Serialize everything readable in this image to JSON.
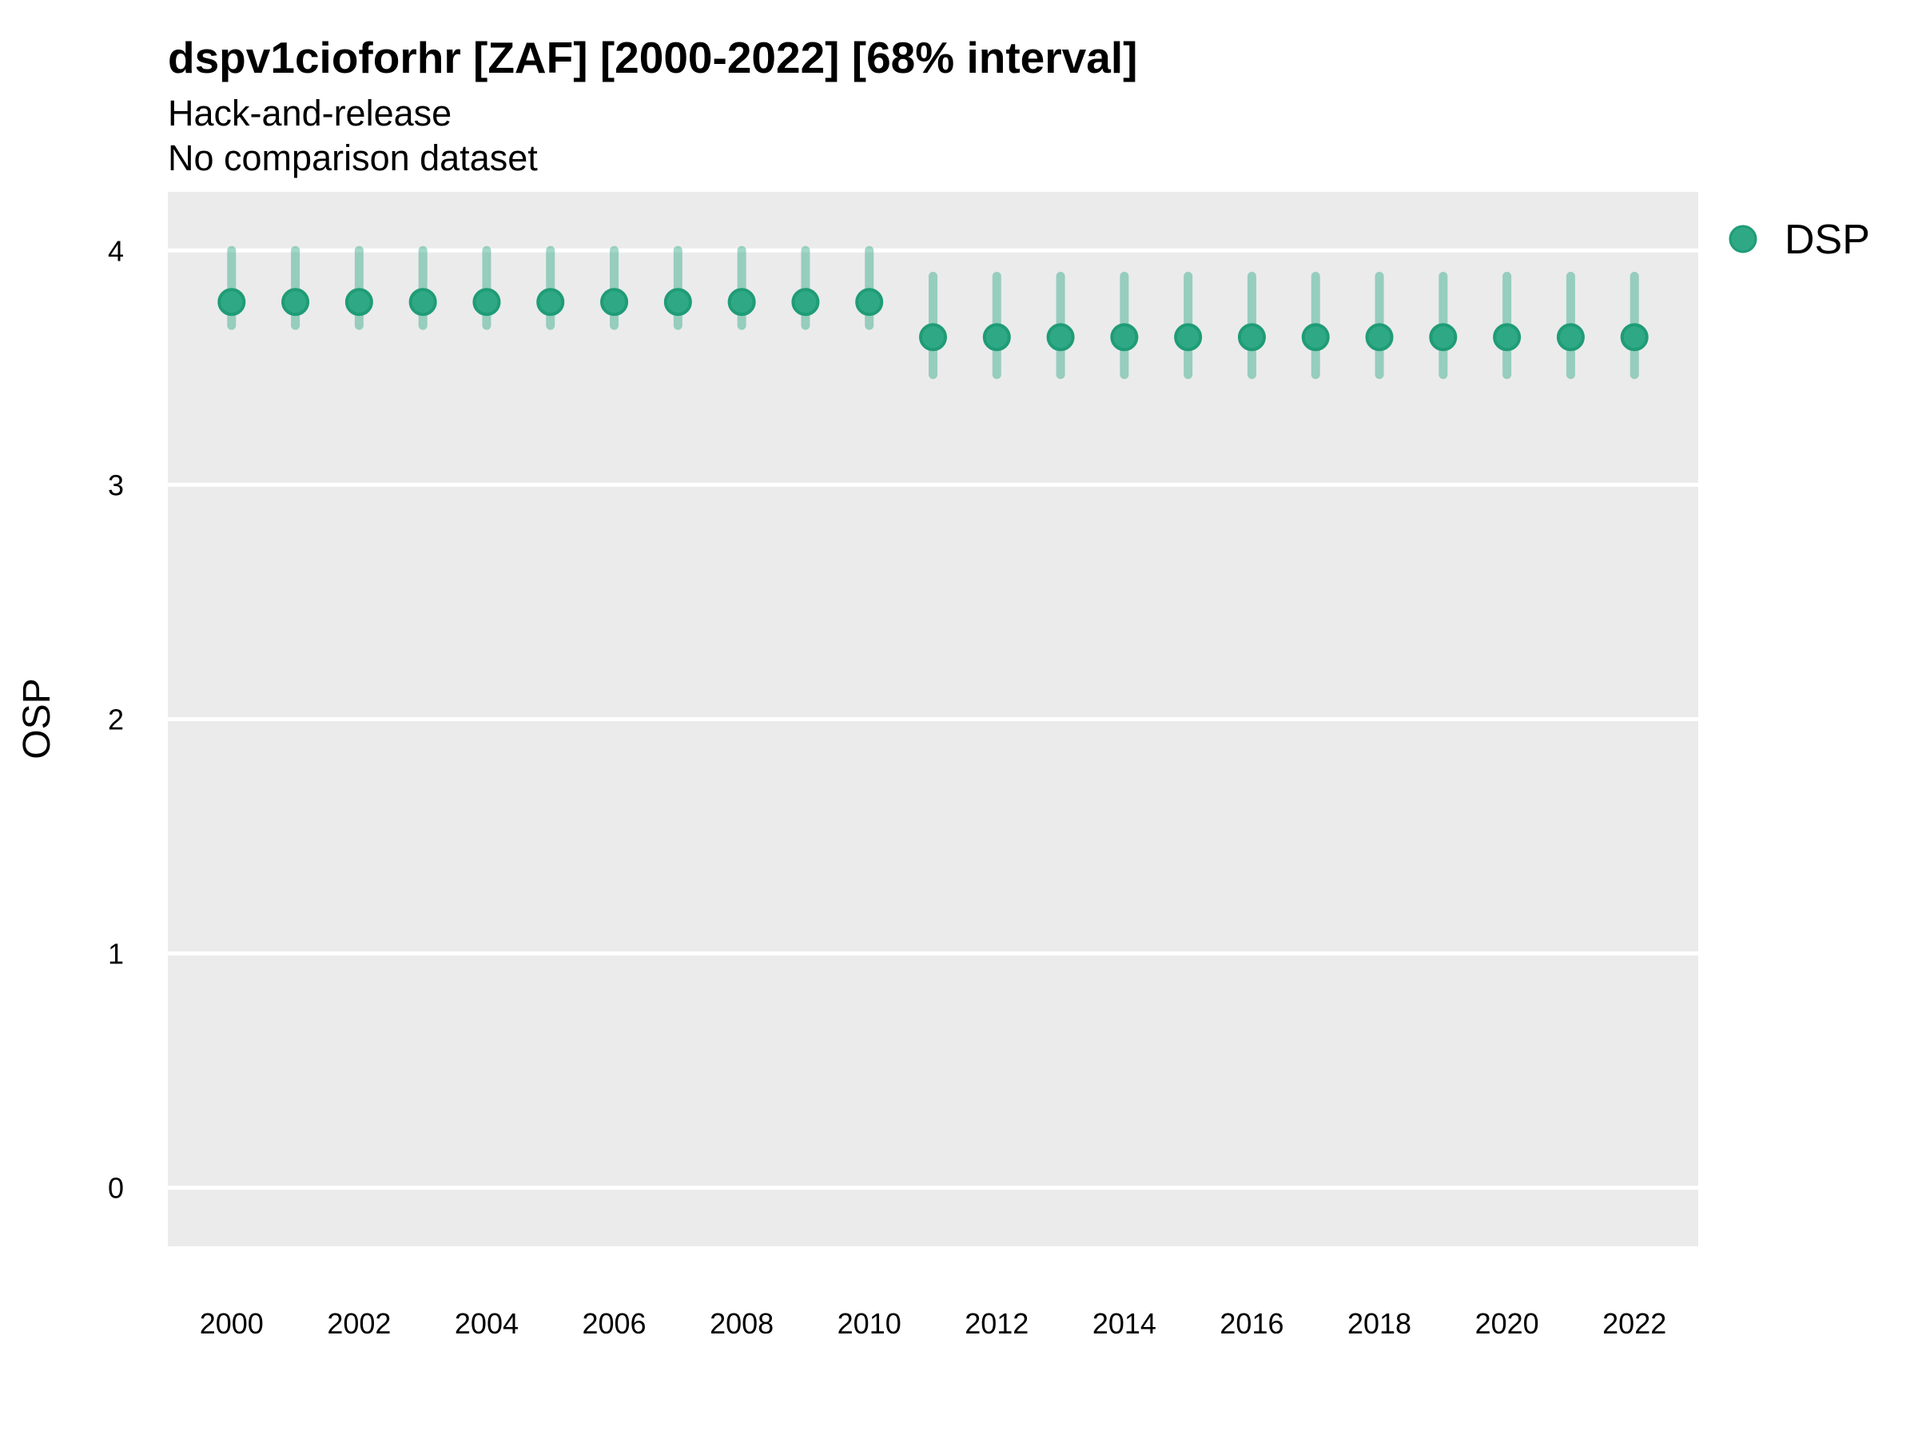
{
  "header": {
    "title": "dspv1cioforhr [ZAF] [2000-2022] [68% interval]",
    "subtitle_line1": "Hack-and-release",
    "subtitle_line2": "No comparison dataset"
  },
  "legend": {
    "items": [
      {
        "label": "DSP",
        "marker": "circle-icon"
      }
    ]
  },
  "colors": {
    "point_fill": "#2FA985",
    "point_stroke": "#1F9C76",
    "interval_color": "#2FA985",
    "interval_opacity": 0.45,
    "panel_bg": "#EBEBEB",
    "gridline": "#FFFFFF",
    "text": "#000000"
  },
  "chart_data": {
    "type": "pointrange",
    "title": "dspv1cioforhr [ZAF] [2000-2022] [68% interval]",
    "subtitle": [
      "Hack-and-release",
      "No comparison dataset"
    ],
    "xlabel": "",
    "ylabel": "OSP",
    "interval_level": "68%",
    "x": [
      2000,
      2001,
      2002,
      2003,
      2004,
      2005,
      2006,
      2007,
      2008,
      2009,
      2010,
      2011,
      2012,
      2013,
      2014,
      2015,
      2016,
      2017,
      2018,
      2019,
      2020,
      2021,
      2022
    ],
    "series": [
      {
        "name": "DSP",
        "mid": [
          3.78,
          3.78,
          3.78,
          3.78,
          3.78,
          3.78,
          3.78,
          3.78,
          3.78,
          3.78,
          3.78,
          3.63,
          3.63,
          3.63,
          3.63,
          3.63,
          3.63,
          3.63,
          3.63,
          3.63,
          3.63,
          3.63,
          3.63
        ],
        "lo": [
          3.68,
          3.68,
          3.68,
          3.68,
          3.68,
          3.68,
          3.68,
          3.68,
          3.68,
          3.68,
          3.68,
          3.47,
          3.47,
          3.47,
          3.47,
          3.47,
          3.47,
          3.47,
          3.47,
          3.47,
          3.47,
          3.47,
          3.47
        ],
        "hi": [
          4.0,
          4.0,
          4.0,
          4.0,
          4.0,
          4.0,
          4.0,
          4.0,
          4.0,
          4.0,
          4.0,
          3.89,
          3.89,
          3.89,
          3.89,
          3.89,
          3.89,
          3.89,
          3.89,
          3.89,
          3.89,
          3.89,
          3.89
        ]
      }
    ],
    "xticks": [
      2000,
      2002,
      2004,
      2006,
      2008,
      2010,
      2012,
      2014,
      2016,
      2018,
      2020,
      2022
    ],
    "yticks": [
      0,
      1,
      2,
      3,
      4
    ],
    "xlim": [
      1999,
      2023
    ],
    "ylim": [
      -0.25,
      4.25
    ],
    "grid": "horizontal-major-only",
    "legend_position": "right"
  }
}
